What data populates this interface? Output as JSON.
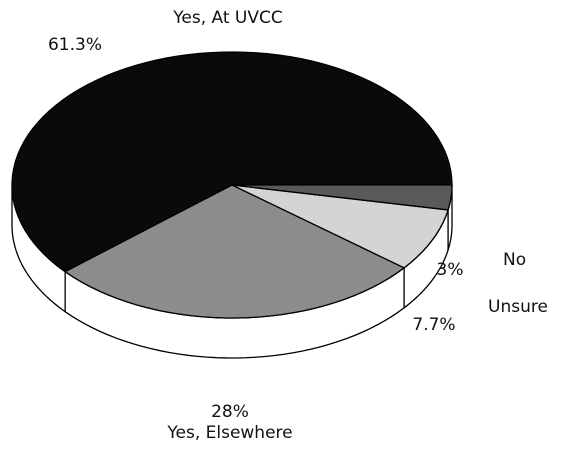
{
  "chart_data": {
    "type": "pie3d",
    "categories": [
      "Yes, At UVCC",
      "Yes, Elsewhere",
      "Unsure",
      "No"
    ],
    "values": [
      61.3,
      28,
      7.7,
      3
    ],
    "value_labels": [
      "61.3%",
      "28%",
      "7.7%",
      "3%"
    ],
    "colors": [
      "#0a0a0a",
      "#8c8c8c",
      "#d4d4d4",
      "#5a5a5a"
    ]
  }
}
